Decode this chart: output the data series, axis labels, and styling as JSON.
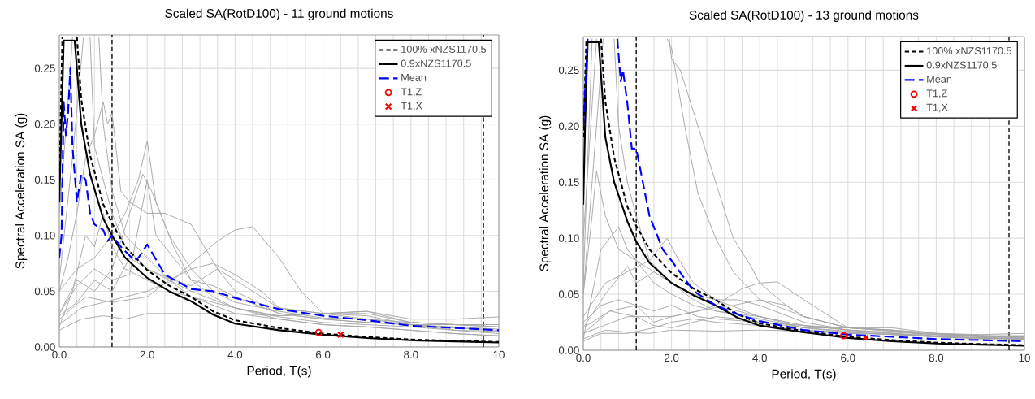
{
  "chart_data": [
    {
      "type": "line",
      "title": "Scaled SA(RotD100) - 11 ground motions",
      "xlabel": "Period, T(s)",
      "ylabel": "Spectral Acceleration SA (g)",
      "xlim": [
        0,
        10
      ],
      "ylim": [
        0,
        0.28
      ],
      "xticks": [
        {
          "value": 0,
          "label": "0.0"
        },
        {
          "value": 0.4,
          "label": null
        },
        {
          "value": 0.8,
          "label": null
        },
        {
          "value": 1.2,
          "label": null
        },
        {
          "value": 1.6,
          "label": null
        },
        {
          "value": 2,
          "label": "2.0"
        },
        {
          "value": 2.4,
          "label": null
        },
        {
          "value": 2.8,
          "label": null
        },
        {
          "value": 3.2,
          "label": null
        },
        {
          "value": 3.6,
          "label": null
        },
        {
          "value": 4,
          "label": "4.0"
        },
        {
          "value": 4.4,
          "label": null
        },
        {
          "value": 4.8,
          "label": null
        },
        {
          "value": 5.2,
          "label": null
        },
        {
          "value": 5.6,
          "label": null
        },
        {
          "value": 6,
          "label": "6.0"
        },
        {
          "value": 6.4,
          "label": null
        },
        {
          "value": 6.8,
          "label": null
        },
        {
          "value": 7.2,
          "label": null
        },
        {
          "value": 7.6,
          "label": null
        },
        {
          "value": 8,
          "label": "8.0"
        },
        {
          "value": 8.4,
          "label": null
        },
        {
          "value": 8.8,
          "label": null
        },
        {
          "value": 9.2,
          "label": null
        },
        {
          "value": 9.6,
          "label": null
        },
        {
          "value": 10,
          "label": "10"
        }
      ],
      "yticks": [
        {
          "value": 0,
          "label": "0.00"
        },
        {
          "value": 0.05,
          "label": "0.05"
        },
        {
          "value": 0.1,
          "label": "0.10"
        },
        {
          "value": 0.15,
          "label": "0.15"
        },
        {
          "value": 0.2,
          "label": "0.20"
        },
        {
          "value": 0.25,
          "label": "0.25"
        }
      ],
      "grid": true,
      "legend": "top right",
      "ref_lines": [
        {
          "axis": "x",
          "value": 1.2,
          "color": "#000000",
          "line_style": "dashed"
        },
        {
          "axis": "x",
          "value": 9.65,
          "color": "#000000",
          "line_style": "dashed"
        }
      ],
      "series": [
        {
          "color": "#a6a6a6",
          "x": [
            0,
            0.2,
            0.4,
            0.6,
            0.8,
            1.0,
            1.1,
            1.2,
            1.4,
            1.6,
            2.0,
            2.4,
            3.0,
            3.6,
            4.0,
            5.0,
            6.0,
            7.0,
            8.0,
            9.0,
            10
          ],
          "values": [
            0.05,
            0.08,
            0.12,
            0.17,
            0.19,
            0.22,
            0.2,
            0.21,
            0.14,
            0.13,
            0.12,
            0.12,
            0.11,
            0.07,
            0.05,
            0.03,
            0.025,
            0.022,
            0.02,
            0.02,
            0.02
          ]
        },
        {
          "color": "#a6a6a6",
          "x": [
            0,
            0.2,
            0.3,
            0.5,
            0.7,
            0.8,
            1.0,
            1.2,
            1.5,
            2.0,
            2.5,
            3.0,
            4.0,
            5.0,
            6.0,
            7.0,
            8.0,
            9.0,
            10
          ],
          "values": [
            0.12,
            0.22,
            0.278,
            null,
            0.278,
            0.18,
            0.15,
            0.12,
            0.09,
            0.07,
            0.06,
            0.045,
            0.035,
            0.027,
            0.022,
            0.02,
            0.018,
            0.015,
            0.014
          ]
        },
        {
          "color": "#a6a6a6",
          "x": [
            0,
            0.4,
            0.8,
            1.2,
            1.5,
            1.8,
            2.0,
            2.2,
            2.6,
            3.0,
            3.5,
            4.0,
            5.0,
            6.0,
            7.0,
            8.0,
            9.0,
            10
          ],
          "values": [
            0.05,
            0.07,
            0.08,
            0.1,
            0.12,
            0.15,
            0.185,
            0.13,
            0.09,
            0.06,
            0.045,
            0.035,
            0.028,
            0.03,
            0.032,
            0.022,
            0.02,
            0.018
          ]
        },
        {
          "color": "#a6a6a6",
          "x": [
            0,
            0.4,
            0.8,
            1.2,
            1.6,
            1.9,
            2.1,
            2.5,
            3.0,
            3.5,
            4.0,
            5.0,
            6.0,
            7.0,
            8.0,
            9.0,
            10
          ],
          "values": [
            0.03,
            0.06,
            0.05,
            0.07,
            0.12,
            0.155,
            0.14,
            0.1,
            0.07,
            0.05,
            0.04,
            0.032,
            0.026,
            0.025,
            0.02,
            0.017,
            0.015
          ]
        },
        {
          "color": "#a6a6a6",
          "x": [
            0,
            0.5,
            1.0,
            1.5,
            2.0,
            2.6,
            3.0,
            3.6,
            4.0,
            4.4,
            5.0,
            5.5,
            6.0,
            7.0,
            8.0,
            9.0,
            10
          ],
          "values": [
            0.02,
            0.035,
            0.04,
            0.045,
            0.05,
            0.06,
            0.075,
            0.095,
            0.105,
            0.108,
            0.08,
            0.05,
            0.03,
            0.025,
            0.022,
            0.02,
            0.018
          ]
        },
        {
          "color": "#a6a6a6",
          "x": [
            0,
            0.6,
            1.2,
            2.0,
            2.5,
            3.0,
            3.5,
            4.0,
            4.6,
            5.0,
            6.0,
            7.0,
            8.0,
            9.0,
            10
          ],
          "values": [
            0.025,
            0.045,
            0.04,
            0.045,
            0.06,
            0.07,
            0.075,
            0.065,
            0.05,
            0.035,
            0.03,
            0.03,
            0.022,
            0.02,
            0.02
          ]
        },
        {
          "color": "#a6a6a6",
          "x": [
            0,
            0.5,
            1.0,
            1.5,
            2.0,
            3.0,
            4.0,
            5.0,
            6.0,
            7.0,
            8.0,
            9.0,
            10
          ],
          "values": [
            0.015,
            0.025,
            0.028,
            0.025,
            0.03,
            0.03,
            0.03,
            0.028,
            0.03,
            0.032,
            0.025,
            0.025,
            0.027
          ]
        },
        {
          "color": "#a6a6a6",
          "x": [
            0,
            0.4,
            0.8,
            1.2,
            1.6,
            2.0,
            2.6,
            3.0,
            3.6,
            4.0,
            5.0,
            6.0,
            7.0,
            8.0,
            9.0,
            10
          ],
          "values": [
            0.028,
            0.04,
            0.06,
            0.05,
            0.08,
            0.07,
            0.06,
            0.055,
            0.07,
            0.06,
            0.035,
            0.03,
            0.028,
            0.02,
            0.015,
            0.012
          ]
        },
        {
          "color": "#a6a6a6",
          "x": [
            0,
            0.3,
            0.6,
            0.8,
            1.0,
            1.2,
            1.5,
            2.0,
            2.5,
            3.0,
            4.0,
            5.0,
            6.0,
            7.0,
            8.0,
            9.0,
            10
          ],
          "values": [
            0.018,
            0.05,
            0.1,
            0.09,
            0.12,
            0.09,
            0.07,
            0.06,
            0.05,
            0.045,
            0.03,
            0.025,
            0.02,
            0.018,
            0.015,
            0.012,
            0.01
          ]
        },
        {
          "color": "#a6a6a6",
          "x": [
            0,
            0.3,
            0.55,
            0.7,
            0.9,
            1.0,
            1.2,
            1.5,
            2.0,
            2.5,
            3.0,
            4.0,
            5.0,
            6.0,
            7.0,
            8.0,
            9.0,
            10
          ],
          "values": [
            0.06,
            0.17,
            0.278,
            null,
            0.278,
            0.2,
            0.14,
            0.1,
            0.08,
            0.06,
            0.05,
            0.035,
            0.025,
            0.02,
            0.018,
            0.015,
            0.012,
            0.01
          ]
        },
        {
          "color": "#a6a6a6",
          "x": [
            0,
            0.4,
            0.8,
            1.2,
            1.6,
            2.0,
            2.2,
            2.6,
            3.0,
            3.5,
            4.0,
            5.0,
            6.0,
            7.0,
            8.0,
            9.0,
            10
          ],
          "values": [
            0.03,
            0.055,
            0.07,
            0.06,
            0.065,
            0.15,
            0.1,
            0.08,
            0.06,
            0.055,
            0.045,
            0.03,
            0.025,
            0.022,
            0.02,
            0.018,
            0.016
          ]
        },
        {
          "name": "100% xNZS1170.5",
          "color": "#000000",
          "line_style": "dashed",
          "x": [
            0,
            0.07,
            0.2,
            0.4,
            0.5,
            0.7,
            1.0,
            1.2,
            1.5,
            2.0,
            2.5,
            3.0,
            3.5,
            4.0,
            5.0,
            6.0,
            7.0,
            8.0,
            9.0,
            10
          ],
          "values": [
            0.15,
            0.278,
            null,
            0.278,
            0.222,
            0.172,
            0.128,
            0.111,
            0.09,
            0.069,
            0.055,
            0.045,
            0.032,
            0.024,
            0.017,
            0.012,
            0.009,
            0.0067,
            0.0055,
            0.0045
          ]
        },
        {
          "name": "0.9xNZS1170.5",
          "color": "#000000",
          "line_style": "solid",
          "x": [
            0,
            0.1,
            0.35,
            0.5,
            0.7,
            1.0,
            1.2,
            1.5,
            2.0,
            2.5,
            3.0,
            3.5,
            4.0,
            5.0,
            6.0,
            7.0,
            8.0,
            9.0,
            10
          ],
          "values": [
            0.13,
            0.275,
            0.275,
            0.2,
            0.155,
            0.115,
            0.1,
            0.08,
            0.062,
            0.05,
            0.041,
            0.029,
            0.021,
            0.015,
            0.011,
            0.008,
            0.006,
            0.005,
            0.004
          ]
        },
        {
          "name": "Mean",
          "color": "#0000ff",
          "line_style": "dashed",
          "x": [
            0,
            0.05,
            0.1,
            0.15,
            0.2,
            0.25,
            0.3,
            0.4,
            0.5,
            0.6,
            0.7,
            0.8,
            1.0,
            1.1,
            1.2,
            1.4,
            1.7,
            1.8,
            2.0,
            2.4,
            3.0,
            3.5,
            4.0,
            5.0,
            6.0,
            7.0,
            8.0,
            9.0,
            10
          ],
          "values": [
            0.08,
            0.1,
            0.22,
            0.19,
            0.21,
            0.25,
            0.18,
            0.13,
            0.155,
            0.15,
            0.12,
            0.11,
            0.105,
            0.095,
            0.1,
            0.09,
            0.078,
            0.08,
            0.092,
            0.065,
            0.052,
            0.05,
            0.044,
            0.034,
            0.028,
            0.024,
            0.019,
            0.017,
            0.015
          ]
        },
        {
          "name": "T1,Z",
          "type": "scatter",
          "marker": "circle",
          "color": "#ff0000",
          "x": [
            5.9
          ],
          "values": [
            0.013
          ]
        },
        {
          "name": "T1,X",
          "type": "scatter",
          "marker": "cross",
          "color": "#ff0000",
          "x": [
            6.4
          ],
          "values": [
            0.011
          ]
        }
      ]
    },
    {
      "type": "line",
      "title": "Scaled SA(RotD100) - 13 ground motions",
      "xlabel": "Period, T(s)",
      "ylabel": "Spectral Acceleration SA (g)",
      "xlim": [
        0,
        10
      ],
      "ylim": [
        0,
        0.28
      ],
      "xticks": [
        {
          "value": 0,
          "label": "0.0"
        },
        {
          "value": 0.4,
          "label": null
        },
        {
          "value": 0.8,
          "label": null
        },
        {
          "value": 1.2,
          "label": null
        },
        {
          "value": 1.6,
          "label": null
        },
        {
          "value": 2,
          "label": "2.0"
        },
        {
          "value": 2.4,
          "label": null
        },
        {
          "value": 2.8,
          "label": null
        },
        {
          "value": 3.2,
          "label": null
        },
        {
          "value": 3.6,
          "label": null
        },
        {
          "value": 4,
          "label": "4.0"
        },
        {
          "value": 4.4,
          "label": null
        },
        {
          "value": 4.8,
          "label": null
        },
        {
          "value": 5.2,
          "label": null
        },
        {
          "value": 5.6,
          "label": null
        },
        {
          "value": 6,
          "label": "6.0"
        },
        {
          "value": 6.4,
          "label": null
        },
        {
          "value": 6.8,
          "label": null
        },
        {
          "value": 7.2,
          "label": null
        },
        {
          "value": 7.6,
          "label": null
        },
        {
          "value": 8,
          "label": "8.0"
        },
        {
          "value": 8.4,
          "label": null
        },
        {
          "value": 8.8,
          "label": null
        },
        {
          "value": 9.2,
          "label": null
        },
        {
          "value": 9.6,
          "label": null
        },
        {
          "value": 10,
          "label": "10"
        }
      ],
      "yticks": [
        {
          "value": 0,
          "label": "0.00"
        },
        {
          "value": 0.05,
          "label": "0.05"
        },
        {
          "value": 0.1,
          "label": "0.10"
        },
        {
          "value": 0.15,
          "label": "0.15"
        },
        {
          "value": 0.2,
          "label": "0.20"
        },
        {
          "value": 0.25,
          "label": "0.25"
        }
      ],
      "grid": true,
      "legend": "top right",
      "ref_lines": [
        {
          "axis": "x",
          "value": 1.2,
          "color": "#000000",
          "line_style": "dashed"
        },
        {
          "axis": "x",
          "value": 9.65,
          "color": "#000000",
          "line_style": "dashed"
        }
      ],
      "series": [
        {
          "color": "#a6a6a6",
          "x": [
            0,
            0.3,
            1.0,
            1.95,
            2.0,
            2.2,
            2.6,
            3.0,
            3.4,
            3.8,
            4.0,
            4.6,
            5.0,
            6.0,
            7.0,
            8.0,
            9.0,
            10
          ],
          "values": [
            0.1,
            0.278,
            null,
            0.278,
            0.26,
            0.25,
            0.2,
            0.15,
            0.1,
            0.075,
            0.06,
            0.04,
            0.03,
            0.02,
            0.018,
            0.015,
            0.013,
            0.012
          ]
        },
        {
          "color": "#a6a6a6",
          "x": [
            0,
            0.2,
            1.0,
            1.9,
            2.0,
            2.3,
            2.6,
            3.0,
            3.4,
            4.0,
            5.0,
            6.0,
            7.0,
            8.0,
            9.0,
            10
          ],
          "values": [
            0.06,
            0.278,
            null,
            0.278,
            0.27,
            0.2,
            0.14,
            0.1,
            0.07,
            0.045,
            0.03,
            0.02,
            0.017,
            0.014,
            0.012,
            0.011
          ]
        },
        {
          "color": "#a6a6a6",
          "x": [
            0,
            0.3,
            0.45,
            0.6,
            0.7,
            0.8,
            1.0,
            1.2,
            1.5,
            2.0,
            2.5,
            3.0,
            4.0,
            5.0,
            6.0,
            7.0,
            8.0,
            9.0,
            10
          ],
          "values": [
            0.05,
            0.2,
            0.278,
            null,
            0.278,
            0.2,
            0.15,
            0.12,
            0.08,
            0.06,
            0.05,
            0.04,
            0.03,
            0.022,
            0.018,
            0.015,
            0.013,
            0.012,
            0.012
          ]
        },
        {
          "color": "#a6a6a6",
          "x": [
            0,
            0.2,
            0.3,
            0.5,
            0.8,
            1.2,
            1.6,
            2.0,
            2.5,
            3.0,
            4.0,
            5.0,
            6.0,
            7.0,
            8.0,
            9.0,
            10
          ],
          "values": [
            0.05,
            0.12,
            0.16,
            0.12,
            0.09,
            0.08,
            0.07,
            0.06,
            0.045,
            0.035,
            0.028,
            0.02,
            0.017,
            0.015,
            0.012,
            0.011,
            0.01
          ]
        },
        {
          "color": "#a6a6a6",
          "x": [
            0,
            1.0,
            2.0,
            2.6,
            3.0,
            3.6,
            4.0,
            4.4,
            5.0,
            5.6,
            6.0,
            7.0,
            8.0,
            9.0,
            10
          ],
          "values": [
            0.015,
            0.03,
            0.03,
            0.035,
            0.04,
            0.055,
            0.06,
            0.061,
            0.045,
            0.03,
            0.02,
            0.018,
            0.015,
            0.014,
            0.015
          ]
        },
        {
          "color": "#a6a6a6",
          "x": [
            0,
            0.5,
            1.0,
            1.5,
            1.9,
            2.1,
            2.5,
            3.0,
            4.0,
            5.0,
            6.0,
            7.0,
            8.0,
            9.0,
            10
          ],
          "values": [
            0.03,
            0.06,
            0.07,
            0.08,
            0.1,
            0.085,
            0.06,
            0.045,
            0.03,
            0.022,
            0.02,
            0.017,
            0.014,
            0.013,
            0.013
          ]
        },
        {
          "color": "#a6a6a6",
          "x": [
            0,
            0.5,
            1.0,
            1.2,
            1.6,
            2.0,
            2.5,
            3.0,
            3.5,
            4.0,
            5.0,
            6.0,
            7.0,
            8.0,
            9.0,
            10
          ],
          "values": [
            0.02,
            0.05,
            0.075,
            0.06,
            0.07,
            0.06,
            0.05,
            0.045,
            0.045,
            0.04,
            0.025,
            0.018,
            0.016,
            0.014,
            0.013,
            0.012
          ]
        },
        {
          "color": "#a6a6a6",
          "x": [
            0,
            0.6,
            1.2,
            1.6,
            2.0,
            2.6,
            3.0,
            3.4,
            4.0,
            4.6,
            5.0,
            6.0,
            7.0,
            8.0,
            9.0,
            10
          ],
          "values": [
            0.015,
            0.035,
            0.04,
            0.025,
            0.03,
            0.035,
            0.038,
            0.04,
            0.045,
            0.04,
            0.03,
            0.02,
            0.02,
            0.015,
            0.013,
            0.012
          ]
        },
        {
          "color": "#a6a6a6",
          "x": [
            0,
            0.5,
            1.0,
            1.5,
            2.0,
            3.0,
            4.0,
            5.0,
            6.0,
            7.0,
            8.0,
            9.0,
            10
          ],
          "values": [
            0.01,
            0.018,
            0.016,
            0.015,
            0.018,
            0.017,
            0.018,
            0.017,
            0.015,
            0.014,
            0.012,
            0.011,
            0.01
          ]
        },
        {
          "color": "#a6a6a6",
          "x": [
            0,
            0.6,
            1.2,
            1.6,
            2.0,
            2.5,
            3.0,
            3.5,
            4.0,
            5.0,
            6.0,
            7.0,
            8.0,
            9.0,
            10
          ],
          "values": [
            0.02,
            0.035,
            0.03,
            0.022,
            0.02,
            0.025,
            0.03,
            0.028,
            0.025,
            0.02,
            0.02,
            0.018,
            0.012,
            0.011,
            0.01
          ]
        },
        {
          "color": "#a6a6a6",
          "x": [
            0,
            0.4,
            0.8,
            1.2,
            1.6,
            2.0,
            2.6,
            3.0,
            4.0,
            5.0,
            6.0,
            7.0,
            8.0,
            9.0,
            10
          ],
          "values": [
            0.025,
            0.04,
            0.045,
            0.04,
            0.035,
            0.04,
            0.03,
            0.028,
            0.025,
            0.022,
            0.018,
            0.015,
            0.012,
            0.01,
            0.01
          ]
        },
        {
          "color": "#a6a6a6",
          "x": [
            0,
            0.2,
            0.4,
            0.6,
            0.8,
            1.0,
            1.2,
            1.6,
            2.0,
            2.5,
            3.0,
            4.0,
            5.0,
            6.0,
            7.0,
            8.0,
            9.0,
            10
          ],
          "values": [
            0.01,
            0.05,
            0.09,
            0.1,
            0.11,
            0.09,
            0.08,
            0.06,
            0.05,
            0.04,
            0.035,
            0.03,
            0.02,
            0.016,
            0.014,
            0.012,
            0.011,
            0.01
          ]
        },
        {
          "color": "#a6a6a6",
          "x": [
            0,
            0.4,
            1.0,
            1.6,
            2.0,
            2.5,
            3.0,
            4.0,
            5.0,
            6.0,
            7.0,
            8.0,
            9.0,
            10
          ],
          "values": [
            0.008,
            0.015,
            0.015,
            0.02,
            0.025,
            0.028,
            0.025,
            0.022,
            0.018,
            0.016,
            0.014,
            0.012,
            0.011,
            0.011
          ]
        },
        {
          "name": "100% xNZS1170.5",
          "color": "#000000",
          "line_style": "dashed",
          "x": [
            0,
            0.07,
            0.2,
            0.4,
            0.5,
            0.7,
            1.0,
            1.2,
            1.5,
            2.0,
            2.5,
            3.0,
            3.5,
            4.0,
            5.0,
            6.0,
            7.0,
            8.0,
            9.0,
            10
          ],
          "values": [
            0.19,
            0.278,
            null,
            0.278,
            0.222,
            0.172,
            0.128,
            0.111,
            0.09,
            0.069,
            0.055,
            0.045,
            0.032,
            0.024,
            0.017,
            0.012,
            0.009,
            0.0067,
            0.0055,
            0.0045
          ]
        },
        {
          "name": "0.9xNZS1170.5",
          "color": "#000000",
          "line_style": "solid",
          "x": [
            0,
            0.04,
            0.1,
            0.35,
            0.5,
            0.7,
            1.0,
            1.2,
            1.5,
            2.0,
            2.5,
            3.0,
            3.5,
            4.0,
            5.0,
            6.0,
            7.0,
            8.0,
            9.0,
            10
          ],
          "values": [
            0.13,
            0.2,
            0.275,
            0.275,
            0.19,
            0.15,
            0.115,
            0.097,
            0.078,
            0.06,
            0.049,
            0.04,
            0.029,
            0.022,
            0.016,
            0.011,
            0.008,
            0.006,
            0.005,
            0.004
          ]
        },
        {
          "name": "Mean",
          "color": "#0000ff",
          "line_style": "dashed",
          "x": [
            0,
            0.1,
            0.4,
            0.77,
            0.85,
            0.9,
            1.0,
            1.1,
            1.2,
            1.5,
            1.8,
            2.0,
            2.5,
            3.0,
            3.5,
            4.0,
            5.0,
            6.0,
            7.0,
            8.0,
            9.0,
            10
          ],
          "values": [
            0.2,
            0.278,
            null,
            0.278,
            0.24,
            0.25,
            0.22,
            0.18,
            0.18,
            0.12,
            0.09,
            0.08,
            0.053,
            0.04,
            0.032,
            0.026,
            0.018,
            0.014,
            0.012,
            0.01,
            0.009,
            0.008
          ]
        },
        {
          "name": "T1,Z",
          "type": "scatter",
          "marker": "circle",
          "color": "#ff0000",
          "x": [
            5.9
          ],
          "values": [
            0.013
          ]
        },
        {
          "name": "T1,X",
          "type": "scatter",
          "marker": "cross",
          "color": "#ff0000",
          "x": [
            6.4
          ],
          "values": [
            0.011
          ]
        }
      ]
    }
  ]
}
